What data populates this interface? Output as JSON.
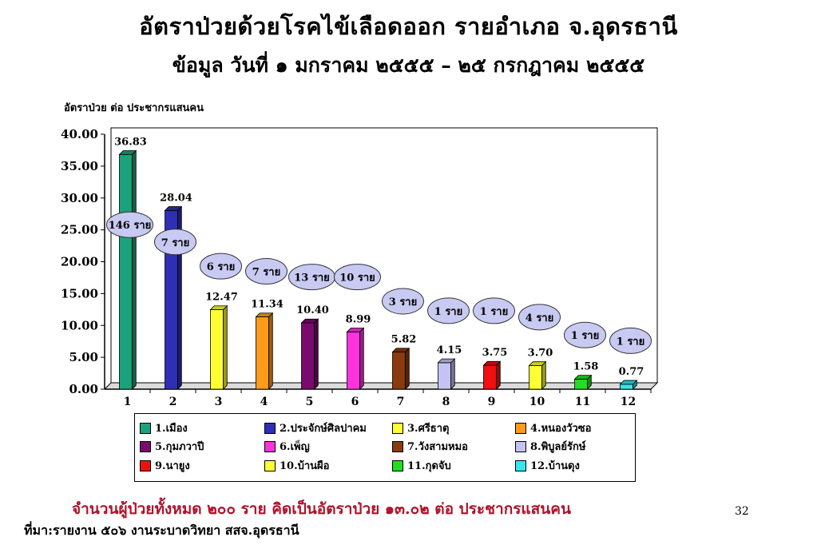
{
  "chart_data": {
    "type": "bar",
    "title": "อัตราป่วยด้วยโรคไข้เลือดออก  รายอำเภอ  จ.อุดรธานี",
    "subtitle": "ข้อมูล วันที่  ๑ มกราคม ๒๕๕๕  – ๒๕ กรกฎาคม ๒๕๕๕",
    "ylabel": "อัตราป่วย ต่อ ประชากรแสนคน",
    "xlabel": "",
    "ylim": [
      0,
      40
    ],
    "yticks": [
      "0.00",
      "5.00",
      "10.00",
      "15.00",
      "20.00",
      "25.00",
      "30.00",
      "35.00",
      "40.00"
    ],
    "categories": [
      "1",
      "2",
      "3",
      "4",
      "5",
      "6",
      "7",
      "8",
      "9",
      "10",
      "11",
      "12"
    ],
    "values": [
      36.83,
      28.04,
      12.47,
      11.34,
      10.4,
      8.99,
      5.82,
      4.15,
      3.75,
      3.7,
      1.58,
      0.77
    ],
    "value_labels": [
      "36.83",
      "28.04",
      "12.47",
      "11.34",
      "10.40",
      "8.99",
      "5.82",
      "4.15",
      "3.75",
      "3.70",
      "1.58",
      "0.77"
    ],
    "case_labels": [
      "146 ราย",
      "7 ราย",
      "6 ราย",
      "7 ราย",
      "13 ราย",
      "10 ราย",
      "3 ราย",
      "1 ราย",
      "1 ราย",
      "4 ราย",
      "1 ราย",
      "1 ราย"
    ],
    "case_label_y": [
      25.8,
      23.1,
      19.3,
      18.5,
      17.6,
      17.6,
      13.8,
      12.3,
      12.3,
      11.3,
      8.5,
      7.6
    ],
    "colors": [
      "#1aa37a",
      "#2e2fb5",
      "#ffff33",
      "#ff9a1a",
      "#7a0a6e",
      "#ff33dd",
      "#8b3a0e",
      "#c4c4f4",
      "#f01010",
      "#ffff33",
      "#22dd22",
      "#33e6ef"
    ],
    "legend": [
      "1.เมือง",
      "2.ประจักษ์ศิลปาคม",
      "3.ศรีธาตุ",
      "4.หนองวัวซอ",
      "5.กุมภวาปี",
      "6.เพ็ญ",
      "7.วังสามหมอ",
      "8.พิบูลย์รักษ์",
      "9.นายูง",
      "10.บ้านผือ",
      "11.กุดจับ",
      "12.บ้านดุง"
    ],
    "legend_placement": "bottom",
    "grid": false
  },
  "summary": "จำนวนผู้ป่วยทั้งหมด  ๒๐๐ ราย  คิดเป็นอัตราป่วย  ๑๓.๐๒  ต่อ ประชากรแสนคน",
  "page_number": "32",
  "source": "ที่มา:รายงาน ๕๐๖  งานระบาดวิทยา สสจ.อุดรธานี"
}
